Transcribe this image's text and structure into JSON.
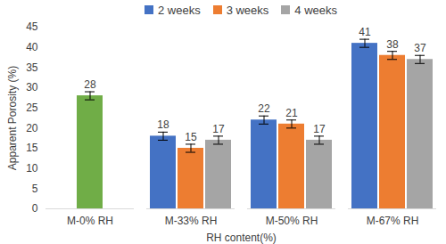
{
  "chart_data": {
    "type": "bar",
    "xlabel": "RH content(%)",
    "ylabel": "Apparent Porosity (%)",
    "categories": [
      "M-0% RH",
      "M-33% RH",
      "M-50% RH",
      "M-67% RH"
    ],
    "series": [
      {
        "color": "#70ad47",
        "values": [
          28,
          null,
          null,
          null
        ],
        "errors": [
          1,
          null,
          null,
          null
        ]
      },
      {
        "name": "2 weeks",
        "color": "#4472c4",
        "values": [
          null,
          18,
          22,
          41
        ],
        "errors": [
          null,
          1,
          1,
          1
        ]
      },
      {
        "name": "3 weeks",
        "color": "#ed7d31",
        "values": [
          null,
          15,
          21,
          38
        ],
        "errors": [
          null,
          1,
          1,
          1
        ]
      },
      {
        "name": "4 weeks",
        "color": "#a5a5a5",
        "values": [
          null,
          17,
          17,
          37
        ],
        "errors": [
          null,
          1,
          1,
          1
        ]
      }
    ],
    "ylim": [
      0,
      45
    ],
    "yticks": [
      0,
      5,
      10,
      15,
      20,
      25,
      30,
      35,
      40,
      45
    ],
    "grid": false,
    "legend": "top",
    "data_labels": true
  }
}
